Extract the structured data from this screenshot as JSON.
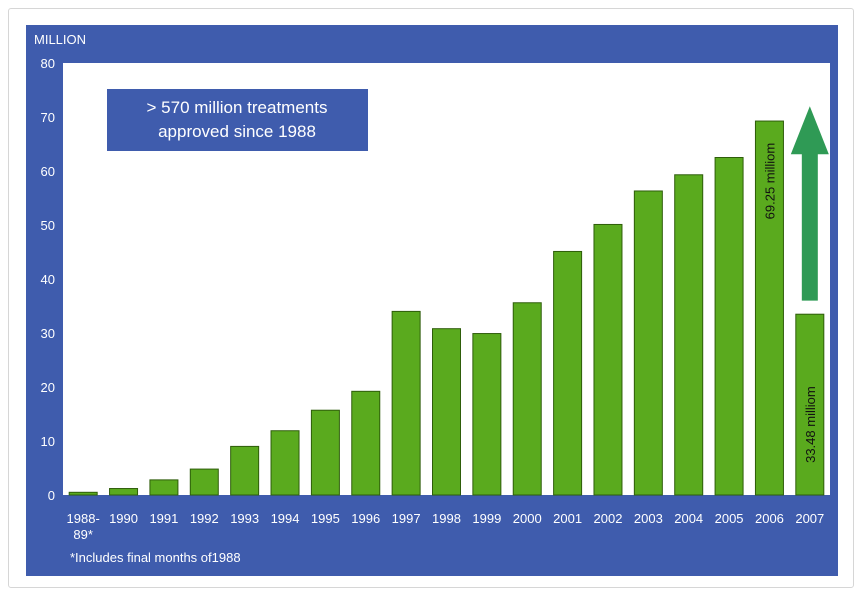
{
  "colors": {
    "panel_bg": "#3f5cad",
    "plot_bg": "#ffffff",
    "bar_fill": "#5aaa1e",
    "bar_stroke": "#2e5d0a",
    "arrow_fill": "#2f9a55",
    "text_light": "#ffffff",
    "text_dark": "#111111",
    "callout_bg": "#3f5cad"
  },
  "chart_data": {
    "type": "bar",
    "ylabel": "MILLION",
    "ylim": [
      0,
      80
    ],
    "yticks": [
      "0",
      "10",
      "20",
      "30",
      "40",
      "50",
      "60",
      "70",
      "80"
    ],
    "categories": [
      [
        "1988-",
        "89*"
      ],
      [
        "1990"
      ],
      [
        "1991"
      ],
      [
        "1992"
      ],
      [
        "1993"
      ],
      [
        "1994"
      ],
      [
        "1995"
      ],
      [
        "1996"
      ],
      [
        "1997"
      ],
      [
        "1998"
      ],
      [
        "1999"
      ],
      [
        "2000"
      ],
      [
        "2001"
      ],
      [
        "2002"
      ],
      [
        "2003"
      ],
      [
        "2004"
      ],
      [
        "2005"
      ],
      [
        "2006"
      ],
      [
        "2007"
      ]
    ],
    "values": [
      0.5,
      1.2,
      2.8,
      4.8,
      9.0,
      11.9,
      15.7,
      19.2,
      34.0,
      30.8,
      29.9,
      35.6,
      45.1,
      50.1,
      56.3,
      59.3,
      62.5,
      69.25,
      33.48
    ],
    "bar_labels": [
      {
        "index": 17,
        "text": "69.25 milliom"
      },
      {
        "index": 18,
        "text": "33.48 milliom"
      }
    ],
    "callout": {
      "lines": [
        "> 570 million treatments",
        "approved since 1988"
      ]
    },
    "footnote": "*Includes final months of1988",
    "arrow": {
      "description": "upward growth arrow beside 2007 bar",
      "from_value": 36,
      "to_value": 72
    }
  }
}
